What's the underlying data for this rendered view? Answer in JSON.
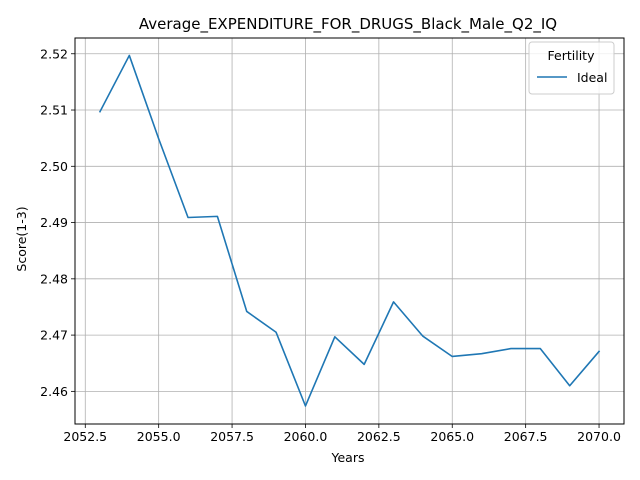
{
  "chart_data": {
    "type": "line",
    "title": "Average_EXPENDITURE_FOR_DRUGS_Black_Male_Q2_IQ",
    "xlabel": "Years",
    "ylabel": "Score(1-3)",
    "xlim": [
      2052.15,
      2070.85
    ],
    "ylim": [
      2.4542,
      2.5228
    ],
    "xticks": [
      2052.5,
      2055.0,
      2057.5,
      2060.0,
      2062.5,
      2065.0,
      2067.5,
      2070.0
    ],
    "xtick_labels": [
      "2052.5",
      "2055.0",
      "2057.5",
      "2060.0",
      "2062.5",
      "2065.0",
      "2067.5",
      "2070.0"
    ],
    "yticks": [
      2.46,
      2.47,
      2.48,
      2.49,
      2.5,
      2.51,
      2.52
    ],
    "ytick_labels": [
      "2.46",
      "2.47",
      "2.48",
      "2.49",
      "2.50",
      "2.51",
      "2.52"
    ],
    "grid": true,
    "legend": {
      "title": "Fertility",
      "placement": "top-right"
    },
    "series": [
      {
        "name": "Ideal",
        "color": "#1f77b4",
        "x": [
          2053,
          2054,
          2055,
          2056,
          2057,
          2058,
          2059,
          2060,
          2061,
          2062,
          2063,
          2064,
          2065,
          2066,
          2067,
          2068,
          2069,
          2070
        ],
        "y": [
          2.5097,
          2.5197,
          2.5049,
          2.4909,
          2.4911,
          2.4742,
          2.4705,
          2.4574,
          2.4697,
          2.4648,
          2.4759,
          2.4698,
          2.4662,
          2.4667,
          2.4676,
          2.4676,
          2.461,
          2.4671
        ]
      }
    ]
  }
}
